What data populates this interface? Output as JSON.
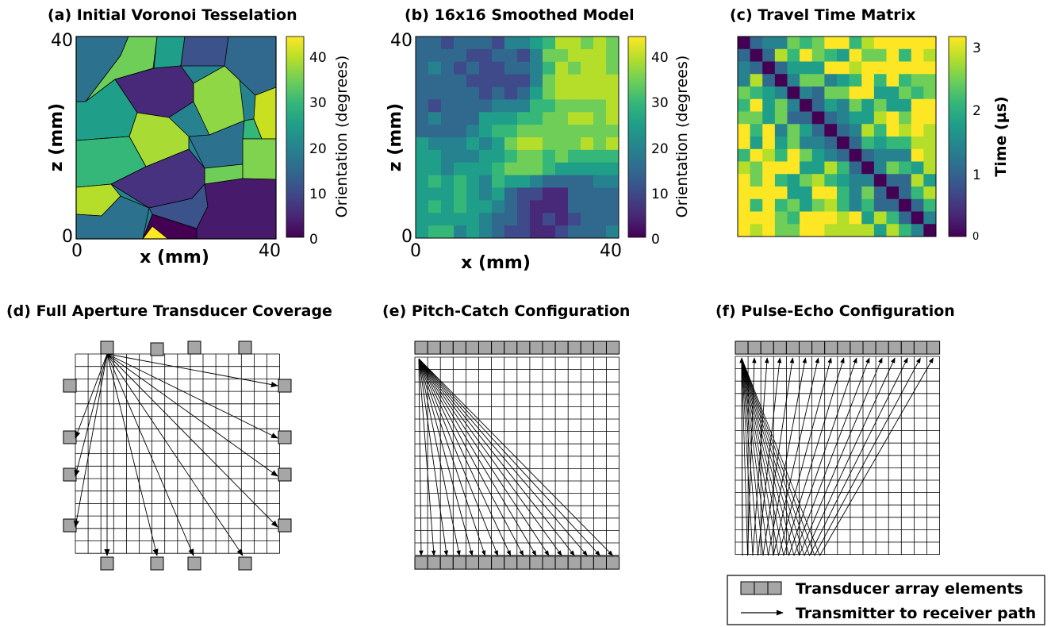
{
  "panels": {
    "a": {
      "title": "(a) Initial Voronoi Tesselation",
      "x_ticks": [
        "0",
        "40"
      ],
      "z_ticks": [
        "40",
        "0"
      ],
      "xlabel": "x (mm)",
      "zlabel": "z (mm)",
      "cb_ticks": [
        "40",
        "30",
        "20",
        "10",
        "0"
      ],
      "cb_label": "Orientation (degrees)"
    },
    "b": {
      "title": "(b) 16x16 Smoothed Model",
      "x_ticks": [
        "0",
        "40"
      ],
      "z_ticks": [
        "40",
        "0"
      ],
      "xlabel": "x (mm)",
      "zlabel": "z (mm)",
      "cb_ticks": [
        "40",
        "30",
        "20",
        "10",
        "0"
      ],
      "cb_label": "Orientation (degrees)"
    },
    "c": {
      "title": "(c) Travel Time Matrix",
      "cb_ticks": [
        "3",
        "2",
        "1",
        "0"
      ],
      "cb_label": "Time (µs)"
    },
    "d": {
      "title": "(d) Full Aperture Transducer Coverage"
    },
    "e": {
      "title": "(e) Pitch-Catch Configuration"
    },
    "f": {
      "title": "(f) Pulse-Echo Configuration"
    }
  },
  "legend": {
    "elements_label": "Transducer array elements",
    "path_label": "Transmitter to receiver path"
  },
  "colors": {
    "viridis": [
      "#440154",
      "#482878",
      "#3e4a89",
      "#31688e",
      "#26828e",
      "#1f9e89",
      "#35b779",
      "#6ece58",
      "#b5de2b",
      "#fde725"
    ],
    "transducer_fill": "#a6a6a6",
    "grid_line": "#000000"
  }
}
